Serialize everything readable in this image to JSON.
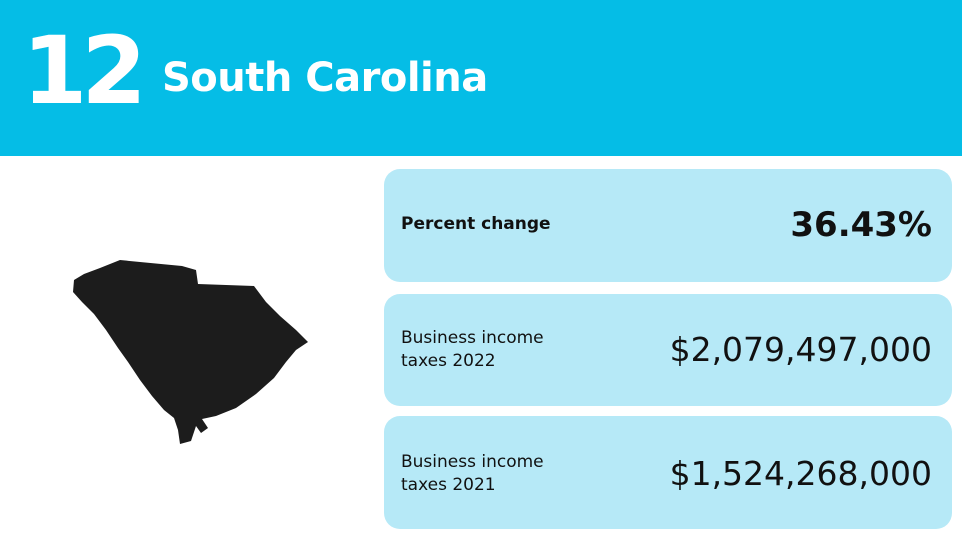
{
  "header": {
    "rank": "12",
    "state": "South Carolina"
  },
  "map": {
    "icon": "south-carolina-map-icon",
    "fill": "#1c1c1c"
  },
  "stats": {
    "percent_change": {
      "label": "Percent change",
      "value": "36.43%"
    },
    "taxes_2022": {
      "label": "Business income taxes 2022",
      "value": "$2,079,497,000"
    },
    "taxes_2021": {
      "label": "Business income taxes 2021",
      "value": "$1,524,268,000"
    }
  },
  "colors": {
    "header_bg": "#05bde6",
    "card_bg": "#b6e9f7",
    "text": "#111111"
  }
}
